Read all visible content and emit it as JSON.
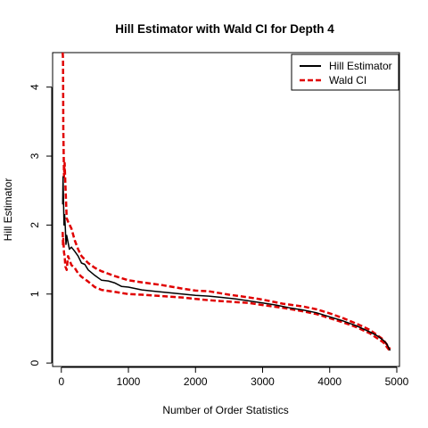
{
  "chart_data": {
    "type": "line",
    "title": "Hill Estimator with Wald CI for Depth 4",
    "xlabel": "Number of Order Statistics",
    "ylabel": "Hill Estimator",
    "xlim": [
      -130,
      5040
    ],
    "ylim": [
      -0.05,
      4.5
    ],
    "xticks": [
      0,
      1000,
      2000,
      3000,
      4000,
      5000
    ],
    "yticks": [
      0,
      1,
      2,
      3,
      4
    ],
    "xtick_labels": [
      "0",
      "1000",
      "2000",
      "3000",
      "4000",
      "5000"
    ],
    "ytick_labels": [
      "0",
      "1",
      "2",
      "3",
      "4"
    ],
    "grid": false,
    "legend_position": "top-right",
    "series": [
      {
        "name": "Hill Estimator",
        "color": "#000000",
        "style": "solid",
        "x": [
          20,
          25,
          30,
          40,
          50,
          60,
          70,
          80,
          100,
          120,
          150,
          200,
          250,
          300,
          350,
          400,
          500,
          600,
          700,
          800,
          900,
          1000,
          1200,
          1400,
          1600,
          1800,
          2000,
          2200,
          2400,
          2600,
          2800,
          3000,
          3200,
          3400,
          3600,
          3800,
          4000,
          4200,
          4400,
          4600,
          4700,
          4800,
          4850,
          4900
        ],
        "y": [
          2.3,
          2.7,
          2.5,
          2.0,
          2.15,
          1.95,
          1.72,
          1.85,
          1.75,
          1.65,
          1.68,
          1.62,
          1.55,
          1.45,
          1.43,
          1.35,
          1.27,
          1.2,
          1.19,
          1.16,
          1.11,
          1.1,
          1.06,
          1.04,
          1.02,
          1.0,
          0.98,
          0.97,
          0.95,
          0.93,
          0.9,
          0.87,
          0.84,
          0.8,
          0.77,
          0.73,
          0.67,
          0.61,
          0.54,
          0.45,
          0.4,
          0.33,
          0.28,
          0.18
        ]
      },
      {
        "name": "Wald CI",
        "color": "#e00000",
        "style": "dashed",
        "x": [
          20,
          25,
          30,
          40,
          50,
          60,
          80,
          100,
          150,
          200,
          250,
          300,
          400,
          500,
          600,
          800,
          1000,
          1200,
          1500,
          1800,
          2000,
          2200,
          2500,
          2800,
          3000,
          3300,
          3600,
          3800,
          4000,
          4200,
          4400,
          4600,
          4800,
          4900
        ],
        "y": [
          4.5,
          4.4,
          3.4,
          2.7,
          2.9,
          2.6,
          2.1,
          2.05,
          1.95,
          1.78,
          1.65,
          1.55,
          1.45,
          1.38,
          1.33,
          1.26,
          1.2,
          1.17,
          1.13,
          1.08,
          1.05,
          1.04,
          0.99,
          0.95,
          0.92,
          0.86,
          0.82,
          0.78,
          0.72,
          0.65,
          0.57,
          0.48,
          0.34,
          0.2
        ]
      },
      {
        "name": "",
        "color": "#e00000",
        "style": "dashed",
        "x": [
          20,
          25,
          30,
          40,
          50,
          60,
          80,
          100,
          150,
          200,
          250,
          300,
          400,
          500,
          600,
          800,
          1000,
          1200,
          1500,
          1800,
          2000,
          2200,
          2500,
          2800,
          3000,
          3300,
          3600,
          3800,
          4000,
          4200,
          4400,
          4600,
          4800,
          4900
        ],
        "y": [
          1.9,
          1.7,
          1.8,
          1.6,
          1.55,
          1.4,
          1.35,
          1.55,
          1.42,
          1.38,
          1.3,
          1.25,
          1.18,
          1.1,
          1.06,
          1.03,
          1.0,
          0.99,
          0.97,
          0.95,
          0.93,
          0.91,
          0.89,
          0.87,
          0.84,
          0.8,
          0.75,
          0.71,
          0.65,
          0.59,
          0.52,
          0.43,
          0.3,
          0.17
        ]
      }
    ]
  }
}
